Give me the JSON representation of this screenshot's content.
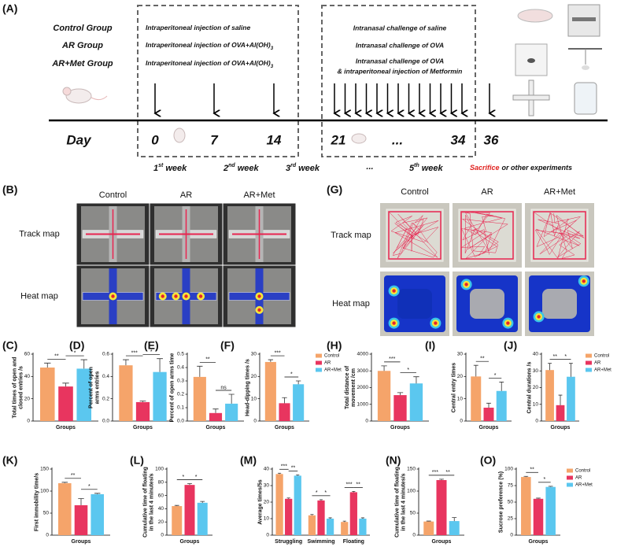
{
  "panel_a": {
    "label": "(A)",
    "groups": [
      "Control Group",
      "AR Group",
      "AR+Met Group"
    ],
    "sensitization": [
      {
        "text": "Intraperitoneal injection of saline"
      },
      {
        "text": "Intraperitoneal injection of OVA+Al(OH)",
        "sub": "3"
      },
      {
        "text": "Intraperitoneal injection of OVA+Al(OH)",
        "sub": "3"
      }
    ],
    "challenge": [
      "Intranasal challenge of saline",
      "Intranasal challenge of OVA",
      "Intranasal challenge of OVA",
      "& intraperitoneal injection of Metformin"
    ],
    "day_label": "Day",
    "days": [
      "0",
      "7",
      "14",
      "21",
      "...",
      "34",
      "36"
    ],
    "weeks": [
      {
        "number": "1",
        "suffix": "st",
        "word": "week"
      },
      {
        "number": "2",
        "suffix": "nd",
        "word": "week"
      },
      {
        "number": "3",
        "suffix": "rd",
        "word": "week"
      },
      {
        "number": "5",
        "suffix": "th",
        "word": "week"
      }
    ],
    "week_gap": "...",
    "sacrifice": "Sacrifice",
    "sacrifice_rest": "or other experiments"
  },
  "panel_b": {
    "label": "(B)",
    "columns": [
      "Control",
      "AR",
      "AR+Met"
    ],
    "rows": [
      "Track map",
      "Heat map"
    ]
  },
  "panel_g": {
    "label": "(G)",
    "columns": [
      "Control",
      "AR",
      "AR+Met"
    ],
    "rows": [
      "Track map",
      "Heat map"
    ]
  },
  "chart_data": [
    {
      "type": "bar",
      "label": "(C)",
      "ylabel": [
        "Total times of open and",
        "closed entries /s"
      ],
      "xlabel": "Groups",
      "ylim": [
        0,
        60
      ],
      "yticks": [
        0,
        20,
        40,
        60
      ],
      "series": [
        {
          "color": "#f5a46a",
          "values": [
            48
          ],
          "errors": [
            4
          ]
        },
        {
          "color": "#e8355f",
          "values": [
            31
          ],
          "errors": [
            3
          ]
        },
        {
          "color": "#5bc7ef",
          "values": [
            47
          ],
          "errors": [
            8
          ]
        }
      ],
      "significance": [
        "**",
        "*"
      ]
    },
    {
      "type": "bar",
      "label": "(D)",
      "ylabel": [
        "Percent of open",
        "arms entries"
      ],
      "xlabel": "Groups",
      "ylim": [
        0,
        0.6
      ],
      "yticks": [
        {
          "value": 0,
          "label": "0.0"
        },
        0.2,
        0.4,
        0.6
      ],
      "series": [
        {
          "color": "#f5a46a",
          "values": [
            0.5
          ],
          "errors": [
            0.05
          ]
        },
        {
          "color": "#e8355f",
          "values": [
            0.17
          ],
          "errors": [
            0.01
          ]
        },
        {
          "color": "#5bc7ef",
          "values": [
            0.44
          ],
          "errors": [
            0.12
          ]
        }
      ],
      "significance": [
        "***",
        "*"
      ]
    },
    {
      "type": "bar",
      "label": "(E)",
      "ylabel": "Percent of open arms time",
      "xlabel": "Groups",
      "ylim": [
        0,
        0.5
      ],
      "yticks": [
        {
          "value": 0,
          "label": "0.0"
        },
        0.1,
        0.2,
        0.3,
        0.4,
        0.5
      ],
      "series": [
        {
          "color": "#f5a46a",
          "values": [
            0.33
          ],
          "errors": [
            0.08
          ]
        },
        {
          "color": "#e8355f",
          "values": [
            0.06
          ],
          "errors": [
            0.03
          ]
        },
        {
          "color": "#5bc7ef",
          "values": [
            0.13
          ],
          "errors": [
            0.07
          ]
        }
      ],
      "significance": [
        "**",
        "ns"
      ]
    },
    {
      "type": "bar",
      "label": "(F)",
      "ylabel": "Head-dipping times /s",
      "xlabel": "Groups",
      "ylim": [
        0,
        30
      ],
      "yticks": [
        0,
        10,
        20,
        30
      ],
      "legend": "right",
      "series": [
        {
          "name": "Control",
          "color": "#f5a46a",
          "values": [
            26.5
          ],
          "errors": [
            1
          ]
        },
        {
          "name": "AR",
          "color": "#e8355f",
          "values": [
            8
          ],
          "errors": [
            2.5
          ]
        },
        {
          "name": "AR+Met",
          "color": "#5bc7ef",
          "values": [
            16.5
          ],
          "errors": [
            1.5
          ]
        }
      ],
      "significance": [
        "***",
        "*"
      ]
    },
    {
      "type": "bar",
      "label": "(H)",
      "ylabel": [
        "Total distance of",
        "movement /cm"
      ],
      "xlabel": "Groups",
      "ylim": [
        0,
        4000
      ],
      "yticks": [
        0,
        1000,
        2000,
        3000,
        4000
      ],
      "series": [
        {
          "color": "#f5a46a",
          "values": [
            3000
          ],
          "errors": [
            300
          ]
        },
        {
          "color": "#e8355f",
          "values": [
            1550
          ],
          "errors": [
            150
          ]
        },
        {
          "color": "#5bc7ef",
          "values": [
            2250
          ],
          "errors": [
            400
          ]
        }
      ],
      "significance": [
        "***",
        "*"
      ]
    },
    {
      "type": "bar",
      "label": "(I)",
      "ylabel": "Central entry times",
      "xlabel": "Groups",
      "ylim": [
        0,
        30
      ],
      "yticks": [
        0,
        10,
        20,
        30
      ],
      "series": [
        {
          "color": "#f5a46a",
          "values": [
            20
          ],
          "errors": [
            5
          ]
        },
        {
          "color": "#e8355f",
          "values": [
            6
          ],
          "errors": [
            2
          ]
        },
        {
          "color": "#5bc7ef",
          "values": [
            13.5
          ],
          "errors": [
            4
          ]
        }
      ],
      "significance": [
        "**",
        "*"
      ]
    },
    {
      "type": "bar",
      "label": "(J)",
      "ylabel": "Central durations /s",
      "xlabel": "Groups",
      "ylim": [
        0,
        40
      ],
      "yticks": [
        0,
        10,
        20,
        30,
        40
      ],
      "legend": "right",
      "series": [
        {
          "name": "Control",
          "color": "#f5a46a",
          "values": [
            30.5
          ],
          "errors": [
            4
          ]
        },
        {
          "name": "AR",
          "color": "#e8355f",
          "values": [
            9.5
          ],
          "errors": [
            6
          ]
        },
        {
          "name": "AR+Met",
          "color": "#5bc7ef",
          "values": [
            26.5
          ],
          "errors": [
            8
          ]
        }
      ],
      "significance": [
        "**",
        "*"
      ]
    },
    {
      "type": "bar",
      "label": "(K)",
      "ylabel": "First immobility time/s",
      "xlabel": "Groups",
      "ylim": [
        0,
        150
      ],
      "yticks": [
        0,
        50,
        100,
        150
      ],
      "series": [
        {
          "color": "#f5a46a",
          "values": [
            118
          ],
          "errors": [
            2
          ]
        },
        {
          "color": "#e8355f",
          "values": [
            68
          ],
          "errors": [
            15
          ]
        },
        {
          "color": "#5bc7ef",
          "values": [
            93
          ],
          "errors": [
            2
          ]
        }
      ],
      "significance": [
        "**",
        "*"
      ]
    },
    {
      "type": "bar",
      "label": "(L)",
      "ylabel": [
        "Cumulative time of floating",
        "in the last 4 minutes/s"
      ],
      "xlabel": "Groups",
      "ylim": [
        0,
        100
      ],
      "yticks": [
        0,
        20,
        40,
        60,
        80,
        100
      ],
      "series": [
        {
          "color": "#f5a46a",
          "values": [
            44
          ],
          "errors": [
            1
          ]
        },
        {
          "color": "#e8355f",
          "values": [
            76
          ],
          "errors": [
            2
          ]
        },
        {
          "color": "#5bc7ef",
          "values": [
            49
          ],
          "errors": [
            2
          ]
        }
      ],
      "significance": [
        "*",
        "*"
      ]
    },
    {
      "type": "bar",
      "label": "(M)",
      "ylabel": "Average times/5s",
      "categories": [
        "Struggling",
        "Swimming",
        "Floating"
      ],
      "ylim": [
        0,
        40
      ],
      "yticks": [
        0,
        10,
        20,
        30,
        40
      ],
      "series": [
        {
          "color": "#f5a46a",
          "values": [
            37,
            12,
            8
          ],
          "errors": [
            0.5,
            0.5,
            0.5
          ]
        },
        {
          "color": "#e8355f",
          "values": [
            22,
            21,
            26
          ],
          "errors": [
            0.5,
            0.5,
            0.5
          ]
        },
        {
          "color": "#5bc7ef",
          "values": [
            36,
            10,
            10
          ],
          "errors": [
            0.5,
            0.5,
            0.5
          ]
        }
      ],
      "significance": [
        [
          "***",
          "**"
        ],
        [
          "*",
          "*"
        ],
        [
          "***",
          "**"
        ]
      ]
    },
    {
      "type": "bar",
      "label": "(N)",
      "ylabel": [
        "Cumulative time of floating",
        "in the last 4 minutes/s"
      ],
      "xlabel": "Groups",
      "ylim": [
        0,
        150
      ],
      "yticks": [
        0,
        50,
        100,
        150
      ],
      "series": [
        {
          "color": "#f5a46a",
          "values": [
            31
          ],
          "errors": [
            1
          ]
        },
        {
          "color": "#e8355f",
          "values": [
            125
          ],
          "errors": [
            2
          ]
        },
        {
          "color": "#5bc7ef",
          "values": [
            32
          ],
          "errors": [
            8
          ]
        }
      ],
      "significance": [
        "***",
        "**"
      ]
    },
    {
      "type": "bar",
      "label": "(O)",
      "ylabel": "Sucrose preference (%)",
      "xlabel": "Groups",
      "ylim": [
        0,
        100
      ],
      "yticks": [
        0,
        25,
        50,
        75,
        100
      ],
      "legend": "right",
      "series": [
        {
          "name": "Control",
          "color": "#f5a46a",
          "values": [
            88
          ],
          "errors": [
            1
          ]
        },
        {
          "name": "AR",
          "color": "#e8355f",
          "values": [
            55
          ],
          "errors": [
            1
          ]
        },
        {
          "name": "AR+Met",
          "color": "#5bc7ef",
          "values": [
            73
          ],
          "errors": [
            1
          ]
        }
      ],
      "significance": [
        "**",
        "*"
      ]
    }
  ]
}
